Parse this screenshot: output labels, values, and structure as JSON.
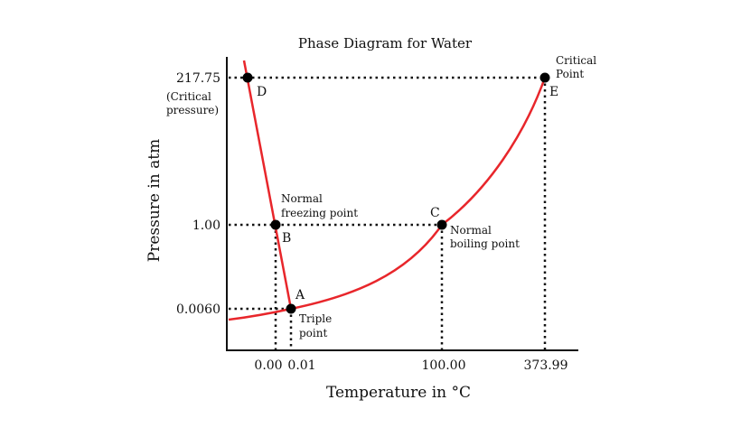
{
  "chart_data": {
    "type": "line",
    "title": "Phase Diagram for Water",
    "xlabel": "Temperature in °C",
    "ylabel": "Pressure in atm",
    "x_ticks": [
      "0.00",
      "0.01",
      "100.00",
      "373.99"
    ],
    "y_ticks": [
      "217.75",
      "1.00",
      "0.0060"
    ],
    "y_tick_note": "(Critical pressure)",
    "grid": false,
    "curve_color": "#e8262b",
    "series": [
      {
        "values": [
          {
            "x": 0.0,
            "y": 1.0
          },
          {
            "x": 0.01,
            "y": 0.006
          }
        ]
      },
      {
        "values": [
          {
            "x": 0.01,
            "y": 0.006
          },
          {
            "x": 100.0,
            "y": 1.0
          },
          {
            "x": 373.99,
            "y": 217.75
          }
        ]
      }
    ],
    "points": [
      {
        "letter": "A",
        "x": 0.01,
        "y": 0.006,
        "label_lines": [
          "Triple",
          "point"
        ]
      },
      {
        "letter": "B",
        "x": 0.0,
        "y": 1.0,
        "label_lines": [
          "Normal",
          "freezing point"
        ]
      },
      {
        "letter": "C",
        "x": 100.0,
        "y": 1.0,
        "label_lines": [
          "Normal",
          "boiling point"
        ]
      },
      {
        "letter": "D",
        "x": null,
        "y": 217.75,
        "label_lines": []
      },
      {
        "letter": "E",
        "x": 373.99,
        "y": 217.75,
        "label_lines": [
          "Critical",
          "Point"
        ]
      }
    ]
  }
}
